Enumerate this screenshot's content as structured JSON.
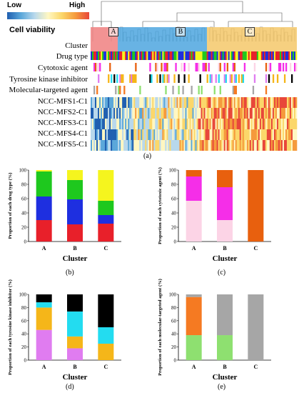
{
  "heatmap": {
    "legend_low": "Low",
    "legend_high": "High",
    "legend_title": "Cell viability",
    "cluster_tags": [
      "A",
      "B",
      "C"
    ],
    "row_labels": [
      "Cluster",
      "Drug type",
      "Cytotoxic agent",
      "Tyrosine kinase inhibitor",
      "Molecular-targeted agent",
      "NCC-MFS1-C1",
      "NCC-MFS2-C1",
      "NCC-MFS3-C1",
      "NCC-MFS4-C1",
      "NCC-MFS5-C1"
    ],
    "cluster_colors": [
      "#f08080",
      "#4da6df",
      "#f5c86a"
    ],
    "panel_label": "(a)"
  },
  "panels": {
    "b": "(b)",
    "c": "(c)",
    "d": "(d)",
    "e": "(e)"
  },
  "chart_data": [
    {
      "type": "bar",
      "stacked": true,
      "categories": [
        "A",
        "B",
        "C"
      ],
      "xlabel": "Cluster",
      "ylabel": "Proportion of each drug type (%)",
      "ylim": [
        0,
        100
      ],
      "yticks": [
        0,
        20,
        40,
        60,
        80,
        100
      ],
      "series": [
        {
          "color": "#e8202a",
          "values": [
            30,
            24,
            25
          ]
        },
        {
          "color": "#1e2fe0",
          "values": [
            33,
            35,
            12
          ]
        },
        {
          "color": "#1ec81e",
          "values": [
            35,
            27,
            20
          ]
        },
        {
          "color": "#f5f51e",
          "values": [
            2,
            14,
            43
          ]
        }
      ]
    },
    {
      "type": "bar",
      "stacked": true,
      "categories": [
        "A",
        "B",
        "C"
      ],
      "xlabel": "Cluster",
      "ylabel": "Proportion of each cytotoxic agent (%)",
      "ylim": [
        0,
        100
      ],
      "yticks": [
        0,
        20,
        40,
        60,
        80,
        100
      ],
      "series": [
        {
          "color": "#fcd4e6",
          "values": [
            57,
            30,
            0
          ]
        },
        {
          "color": "#f52ee8",
          "values": [
            34,
            46,
            0
          ]
        },
        {
          "color": "#e8600e",
          "values": [
            9,
            24,
            100
          ]
        }
      ]
    },
    {
      "type": "bar",
      "stacked": true,
      "categories": [
        "A",
        "B",
        "C"
      ],
      "xlabel": "Cluster",
      "ylabel": "Proportion of each tyrosine kinase inhibitor (%)",
      "ylim": [
        0,
        100
      ],
      "yticks": [
        0,
        20,
        40,
        60,
        80,
        100
      ],
      "series": [
        {
          "color": "#e07cf0",
          "values": [
            46,
            18,
            0
          ]
        },
        {
          "color": "#f5b619",
          "values": [
            34,
            18,
            25
          ]
        },
        {
          "color": "#23dcf0",
          "values": [
            8,
            38,
            25
          ]
        },
        {
          "color": "#000000",
          "values": [
            12,
            26,
            50
          ]
        }
      ]
    },
    {
      "type": "bar",
      "stacked": true,
      "categories": [
        "A",
        "B",
        "C"
      ],
      "xlabel": "Cluster",
      "ylabel": "Proportion of each molecular-targeted agent (%)",
      "ylim": [
        0,
        100
      ],
      "yticks": [
        0,
        20,
        40,
        60,
        80,
        100
      ],
      "series": [
        {
          "color": "#8ee070",
          "values": [
            38,
            38,
            0
          ]
        },
        {
          "color": "#f57a22",
          "values": [
            58,
            0,
            0
          ]
        },
        {
          "color": "#a6a6a6",
          "values": [
            4,
            62,
            100
          ]
        }
      ]
    }
  ]
}
